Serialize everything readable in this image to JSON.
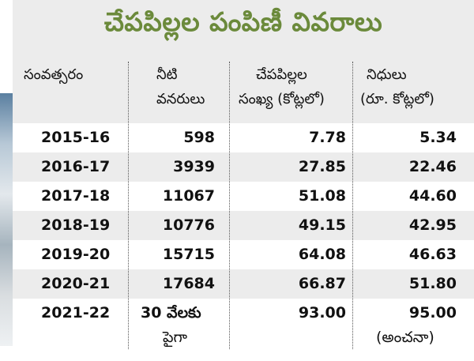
{
  "title": "చేపపిల్లల పంపిణీ వివరాలు",
  "columns": [
    {
      "line1": "సంవత్సరం",
      "line2": ""
    },
    {
      "line1": "నీటి",
      "line2": "వనరులు"
    },
    {
      "line1": "చేపపిల్లల",
      "line2": "సంఖ్య (కోట్లలో)"
    },
    {
      "line1": "నిధులు",
      "line2": "(రూ. కోట్లలో)"
    }
  ],
  "rows": [
    {
      "year": "2015-16",
      "sources": "598",
      "fish": "7.78",
      "funds": "5.34"
    },
    {
      "year": "2016-17",
      "sources": "3939",
      "fish": "27.85",
      "funds": "22.46"
    },
    {
      "year": "2017-18",
      "sources": "11067",
      "fish": "51.08",
      "funds": "44.60"
    },
    {
      "year": "2018-19",
      "sources": "10776",
      "fish": "49.15",
      "funds": "42.95"
    },
    {
      "year": "2019-20",
      "sources": "15715",
      "fish": "64.08",
      "funds": "46.63"
    },
    {
      "year": "2020-21",
      "sources": "17684",
      "fish": "66.87",
      "funds": "51.80"
    }
  ],
  "last_row": {
    "year": "2021-22",
    "sources_line1": "30 వేలకు",
    "sources_line2": "పైగా",
    "fish": "93.00",
    "funds_line1": "95.00",
    "funds_line2": "(అంచనా)"
  }
}
